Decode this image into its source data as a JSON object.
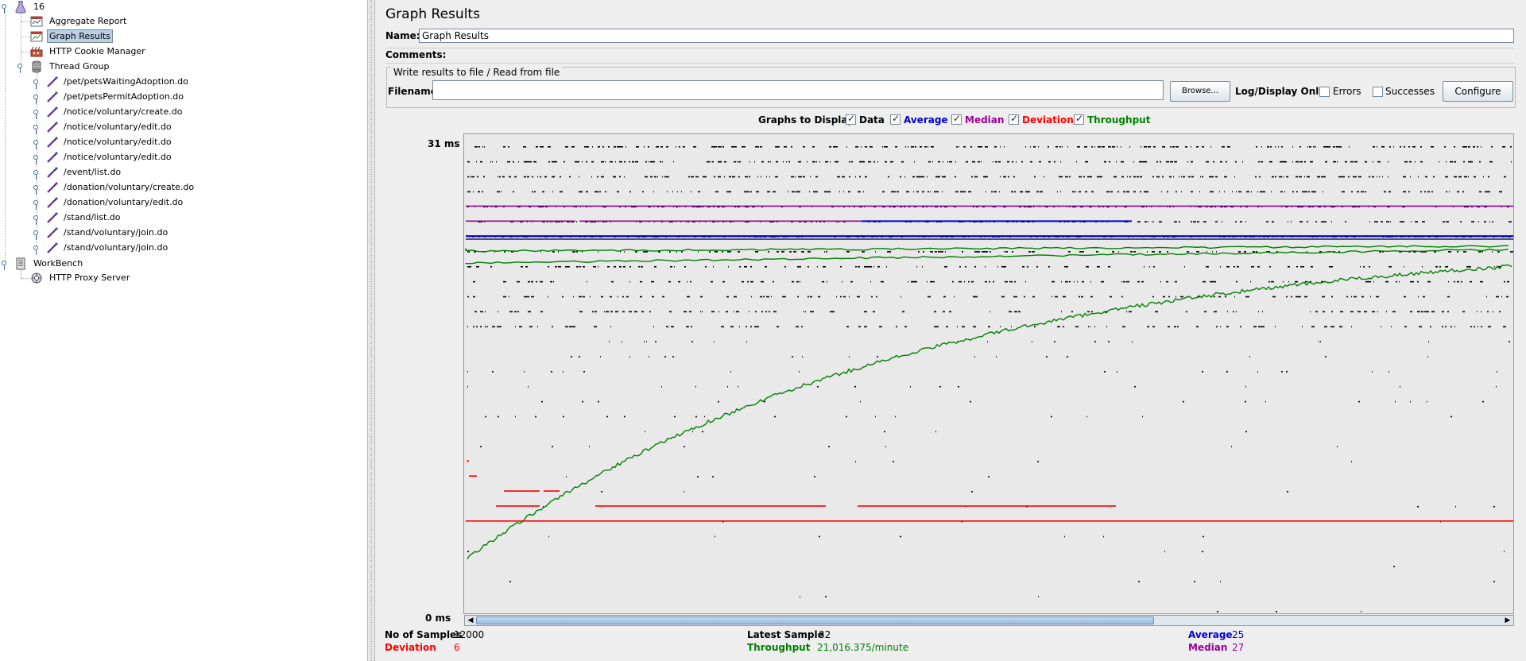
{
  "tree": {
    "root_label": "16",
    "items": [
      {
        "label": "Aggregate Report",
        "icon": "report-icon"
      },
      {
        "label": "Graph Results",
        "icon": "graph-icon",
        "selected": true
      },
      {
        "label": "HTTP Cookie Manager",
        "icon": "cookie-manager-icon"
      },
      {
        "label": "Thread Group",
        "icon": "thread-group-icon"
      }
    ],
    "samplers": [
      "/pet/petsWaitingAdoption.do",
      "/pet/petsPermitAdoption.do",
      "/notice/voluntary/create.do",
      "/notice/voluntary/edit.do",
      "/notice/voluntary/edit.do",
      "/notice/voluntary/edit.do",
      "/event/list.do",
      "/donation/voluntary/create.do",
      "/donation/voluntary/edit.do",
      "/stand/list.do",
      "/stand/voluntary/join.do",
      "/stand/voluntary/join.do"
    ],
    "workbench_label": "WorkBench",
    "proxy_label": "HTTP Proxy Server"
  },
  "panel": {
    "title": "Graph Results",
    "name_label": "Name:",
    "name_value": "Graph Results",
    "comments_label": "Comments:",
    "file_group_title": "Write results to file / Read from file",
    "filename_label": "Filename",
    "filename_value": "",
    "browse_label": "Browse...",
    "log_display_label": "Log/Display Only:",
    "errors_label": "Errors",
    "errors_checked": false,
    "successes_label": "Successes",
    "successes_checked": false,
    "configure_label": "Configure"
  },
  "graphs_to_display": {
    "label": "Graphs to Display",
    "options": [
      {
        "label": "Data",
        "checked": true,
        "color": "#000000"
      },
      {
        "label": "Average",
        "checked": true,
        "color": "#0000cc"
      },
      {
        "label": "Median",
        "checked": true,
        "color": "#990099"
      },
      {
        "label": "Deviation",
        "checked": true,
        "color": "#ff0000"
      },
      {
        "label": "Throughput",
        "checked": true,
        "color": "#008000"
      }
    ]
  },
  "chart_data": {
    "type": "scatter",
    "y_max_label": "31  ms",
    "y_min_label": "0  ms",
    "ylim": [
      0,
      31
    ],
    "samples_x": [
      0,
      12000
    ],
    "series": [
      {
        "name": "Average",
        "color": "#0000cc",
        "final": 25
      },
      {
        "name": "Median",
        "color": "#990099",
        "final": 27
      },
      {
        "name": "Deviation",
        "color": "#ff0000",
        "final": 6
      },
      {
        "name": "Throughput",
        "color": "#008000",
        "final": 21016.375
      }
    ]
  },
  "stats": {
    "samples_label": "No of Samples",
    "samples_value": "12000",
    "deviation_label": "Deviation",
    "deviation_value": "6",
    "latest_label": "Latest Sample",
    "latest_value": "32",
    "throughput_label": "Throughput",
    "throughput_value": "21,016.375/minute",
    "average_label": "Average",
    "average_value": "25",
    "median_label": "Median",
    "median_value": "27"
  },
  "colors": {
    "data": "#000000",
    "average": "#0000cc",
    "median": "#990099",
    "deviation": "#ff0000",
    "throughput": "#008000"
  }
}
